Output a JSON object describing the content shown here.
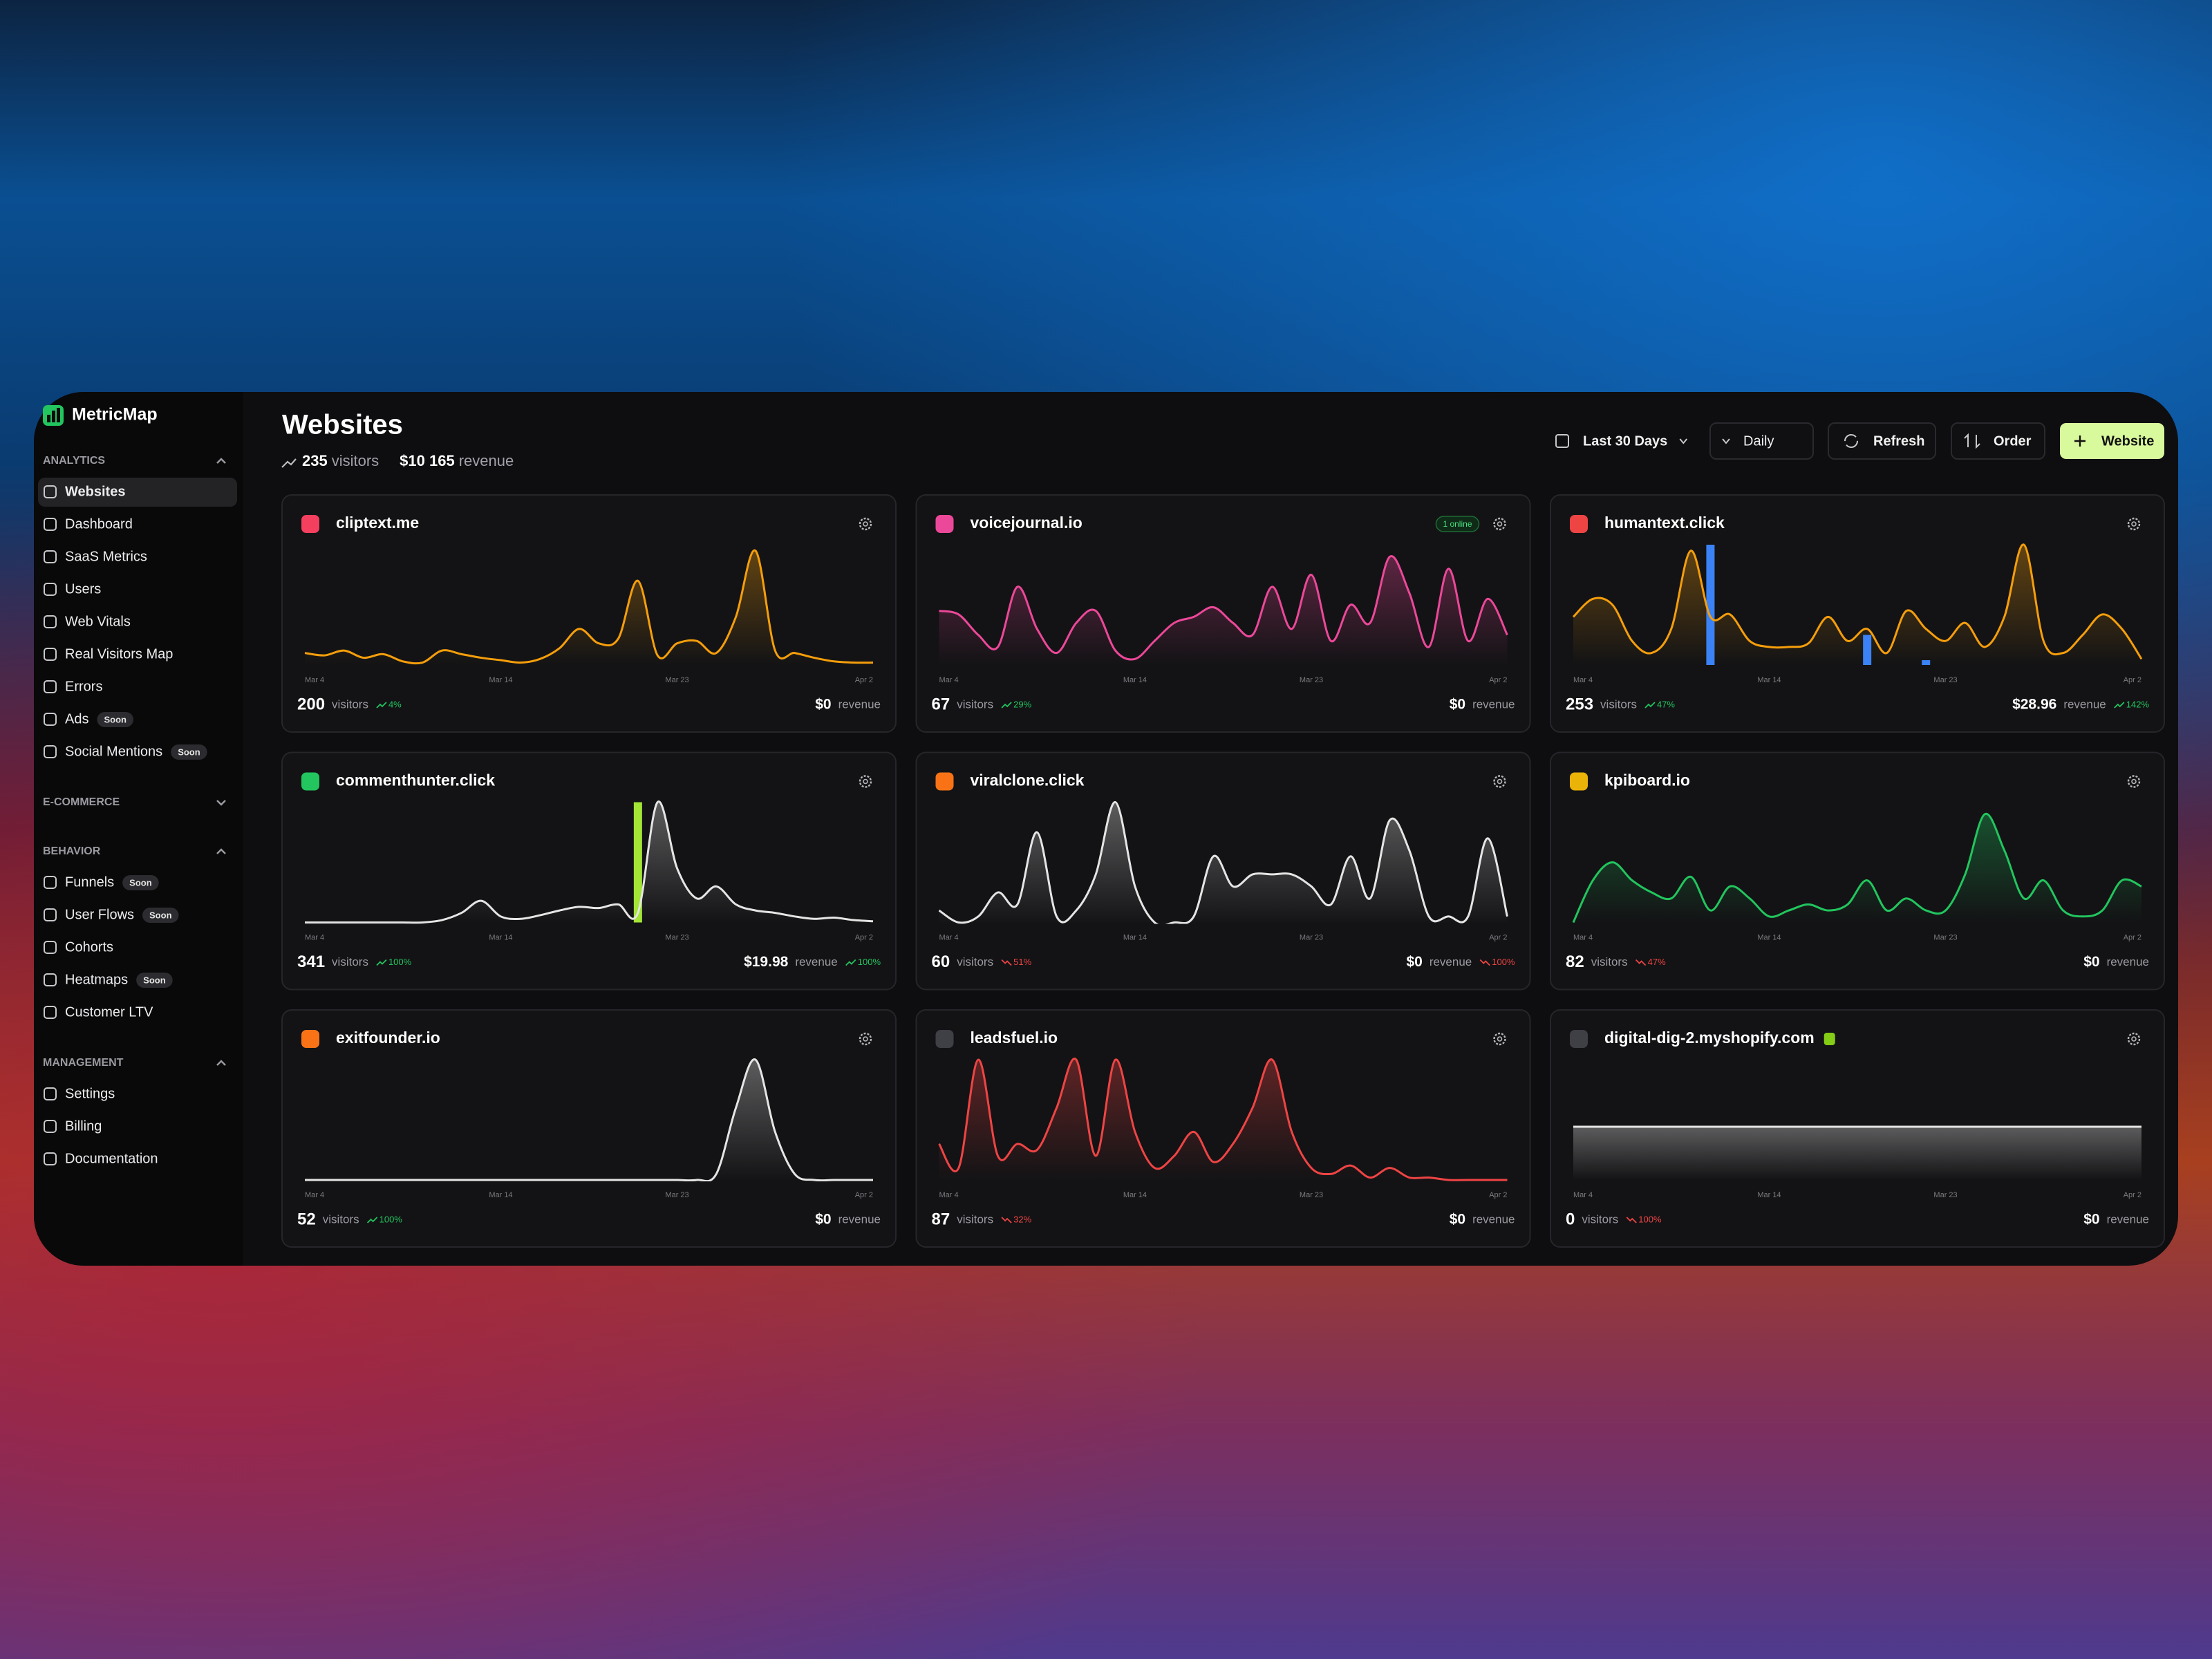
{
  "app": {
    "name": "MetricMap"
  },
  "sidebar": {
    "sections": [
      {
        "title": "ANALYTICS",
        "collapsed": false,
        "items": [
          {
            "label": "Websites",
            "active": true
          },
          {
            "label": "Dashboard"
          },
          {
            "label": "SaaS Metrics"
          },
          {
            "label": "Users"
          },
          {
            "label": "Web Vitals"
          },
          {
            "label": "Real Visitors Map"
          },
          {
            "label": "Errors"
          },
          {
            "label": "Ads",
            "badge": "Soon"
          },
          {
            "label": "Social Mentions",
            "badge": "Soon"
          }
        ]
      },
      {
        "title": "E-COMMERCE",
        "collapsed": true,
        "items": []
      },
      {
        "title": "BEHAVIOR",
        "collapsed": false,
        "items": [
          {
            "label": "Funnels",
            "badge": "Soon"
          },
          {
            "label": "User Flows",
            "badge": "Soon"
          },
          {
            "label": "Cohorts"
          },
          {
            "label": "Heatmaps",
            "badge": "Soon"
          },
          {
            "label": "Customer LTV"
          }
        ]
      },
      {
        "title": "MANAGEMENT",
        "collapsed": false,
        "items": [
          {
            "label": "Settings"
          },
          {
            "label": "Billing"
          },
          {
            "label": "Documentation"
          }
        ]
      }
    ]
  },
  "header": {
    "title": "Websites",
    "visitors": "235",
    "revenue": "$10 165"
  },
  "labels": {
    "visitors": "visitors",
    "revenue": "revenue"
  },
  "toolbar": [
    "Last 30 Days",
    "Daily",
    "Refresh",
    "Order",
    "Website"
  ],
  "axis_labels": [
    {
      "day": 0,
      "label": "Mar 4"
    },
    {
      "day": 10,
      "label": "Mar 14"
    },
    {
      "day": 19,
      "label": "Mar 23"
    },
    {
      "day": 29,
      "label": "Apr 2"
    }
  ],
  "cards": [
    {
      "name": "cliptext.me",
      "icon_color": "#f43f5e",
      "color": "#f59e0b",
      "visitors": "200",
      "visitors_change": "4%",
      "visitors_trend": "up",
      "revenue": "$0",
      "values": [
        10,
        8,
        12,
        6,
        9,
        3,
        2,
        12,
        9,
        6,
        4,
        2,
        5,
        14,
        30,
        18,
        22,
        70,
        8,
        18,
        20,
        10,
        40,
        95,
        12,
        10,
        6,
        3,
        2,
        2
      ]
    },
    {
      "name": "voicejournal.io",
      "icon_color": "#ec4899",
      "color": "#ec4899",
      "badge": "1 online",
      "visitors": "67",
      "visitors_change": "29%",
      "visitors_trend": "up",
      "revenue": "$0",
      "values": [
        45,
        42,
        25,
        15,
        65,
        30,
        10,
        35,
        45,
        12,
        5,
        20,
        35,
        40,
        48,
        35,
        25,
        65,
        30,
        75,
        20,
        50,
        35,
        90,
        60,
        15,
        80,
        20,
        55,
        25
      ]
    },
    {
      "name": "humantext.click",
      "icon_color": "#ef4444",
      "color": "#f59e0b",
      "visitors": "253",
      "visitors_change": "47%",
      "visitors_trend": "up",
      "revenue": "$28.96",
      "revenue_change": "142%",
      "revenue_trend": "up",
      "values": [
        40,
        55,
        50,
        20,
        10,
        30,
        95,
        40,
        42,
        20,
        15,
        15,
        18,
        40,
        20,
        30,
        10,
        45,
        30,
        20,
        35,
        15,
        40,
        100,
        20,
        10,
        25,
        42,
        30,
        5
      ],
      "bar_color": "#3b82f6",
      "bars": [
        {
          "day": 7,
          "value": 100
        },
        {
          "day": 15,
          "value": 25
        },
        {
          "day": 18,
          "value": 4
        }
      ]
    },
    {
      "name": "commenthunter.click",
      "icon_color": "#22c55e",
      "color": "#e5e5e5",
      "visitors": "341",
      "visitors_change": "100%",
      "visitors_trend": "up",
      "revenue": "$19.98",
      "revenue_change": "100%",
      "revenue_trend": "up",
      "values": [
        0,
        0,
        0,
        0,
        0,
        0,
        0,
        2,
        8,
        18,
        5,
        3,
        6,
        10,
        13,
        12,
        15,
        8,
        100,
        45,
        20,
        30,
        15,
        10,
        8,
        5,
        3,
        4,
        2,
        1
      ],
      "bar_color": "#a3e635",
      "bars": [
        {
          "day": 17,
          "value": 100
        }
      ]
    },
    {
      "name": "viralclone.click",
      "icon_color": "#f97316",
      "color": "#e5e5e5",
      "visitors": "60",
      "visitors_change": "51%",
      "visitors_trend": "down",
      "revenue": "$0",
      "revenue_change": "100%",
      "revenue_trend": "down",
      "values": [
        10,
        0,
        5,
        25,
        15,
        75,
        5,
        10,
        40,
        100,
        30,
        0,
        0,
        5,
        55,
        30,
        40,
        40,
        40,
        30,
        15,
        55,
        20,
        85,
        60,
        5,
        5,
        5,
        70,
        5
      ]
    },
    {
      "name": "kpiboard.io",
      "icon_color": "#eab308",
      "color": "#22c55e",
      "visitors": "82",
      "visitors_change": "47%",
      "visitors_trend": "down",
      "revenue": "$0",
      "values": [
        0,
        35,
        50,
        35,
        25,
        20,
        38,
        10,
        30,
        20,
        5,
        10,
        15,
        10,
        15,
        35,
        10,
        20,
        10,
        10,
        40,
        90,
        60,
        20,
        35,
        10,
        5,
        10,
        35,
        30
      ]
    },
    {
      "name": "exitfounder.io",
      "icon_color": "#f97316",
      "color": "#e5e5e5",
      "visitors": "52",
      "visitors_change": "100%",
      "visitors_trend": "up",
      "revenue": "$0",
      "values": [
        0,
        0,
        0,
        0,
        0,
        0,
        0,
        0,
        0,
        0,
        0,
        0,
        0,
        0,
        0,
        0,
        0,
        0,
        0,
        0,
        0,
        5,
        60,
        100,
        40,
        5,
        0,
        0,
        0,
        0
      ]
    },
    {
      "name": "leadsfuel.io",
      "icon_color": "#3f3f46",
      "color": "#ef4444",
      "visitors": "87",
      "visitors_change": "32%",
      "visitors_trend": "down",
      "revenue": "$0",
      "values": [
        30,
        10,
        100,
        20,
        30,
        25,
        60,
        100,
        20,
        100,
        40,
        10,
        20,
        40,
        15,
        30,
        60,
        100,
        40,
        10,
        5,
        12,
        2,
        10,
        2,
        2,
        0,
        0,
        0,
        0
      ]
    },
    {
      "name": "digital-dig-2.myshopify.com",
      "icon_color": "#3f3f46",
      "color": "#e5e5e5",
      "shop_icon": true,
      "visitors": "0",
      "visitors_change": "100%",
      "visitors_trend": "down",
      "revenue": "$0",
      "values": [
        0,
        0,
        0,
        0,
        0,
        0,
        0,
        0,
        0,
        0,
        0,
        0,
        0,
        0,
        0,
        0,
        0,
        0,
        0,
        0,
        0,
        0,
        0,
        0,
        0,
        0,
        0,
        0,
        0,
        0
      ]
    }
  ]
}
